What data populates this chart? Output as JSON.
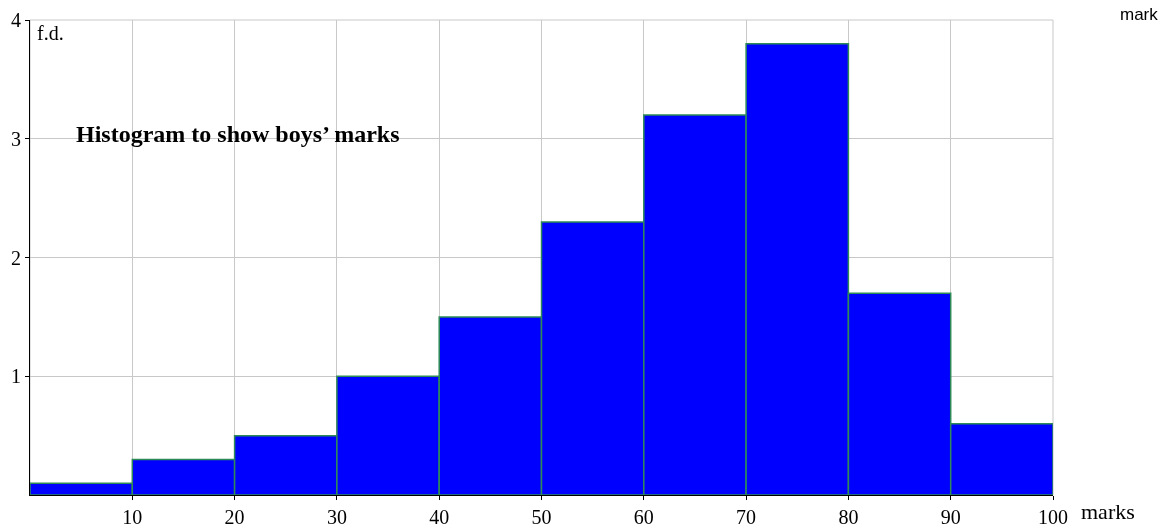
{
  "chart_data": {
    "type": "histogram",
    "title": "Histogram to show boys’ marks",
    "xlabel": "marks",
    "ylabel": "f.d.",
    "annotations": [
      "mark"
    ],
    "bins": [
      0,
      10,
      20,
      30,
      40,
      50,
      60,
      70,
      80,
      90,
      100
    ],
    "values": [
      0.1,
      0.3,
      0.5,
      1.0,
      1.5,
      2.3,
      3.2,
      3.8,
      1.7,
      0.6
    ],
    "color": "#0000ff",
    "xlim": [
      0,
      100
    ],
    "xticks": [
      10,
      20,
      30,
      40,
      50,
      60,
      70,
      80,
      90,
      100
    ],
    "ylim": [
      0,
      4
    ],
    "yticks": [
      1,
      2,
      3,
      4
    ],
    "grid": true,
    "legend": false
  }
}
